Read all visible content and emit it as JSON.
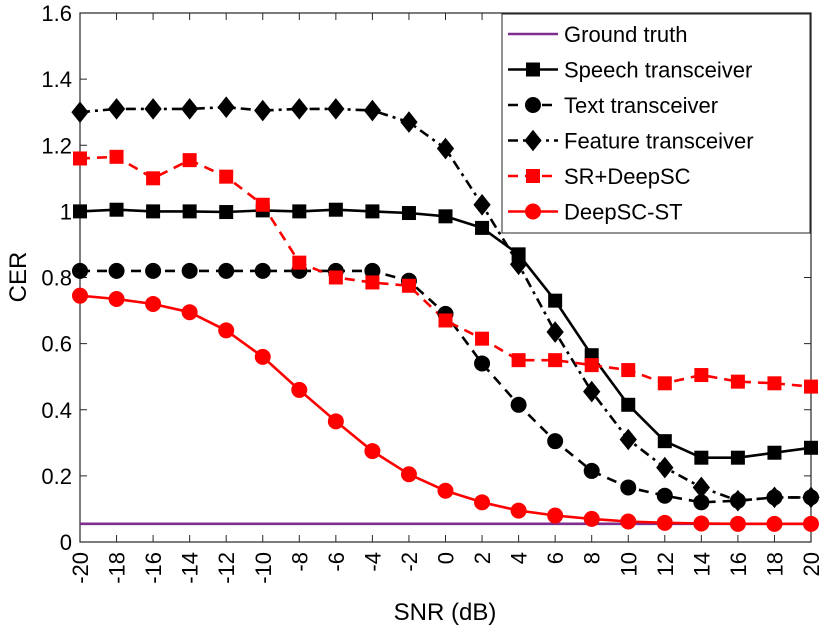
{
  "chart_data": {
    "type": "line",
    "xlabel": "SNR (dB)",
    "ylabel": "CER",
    "x": [
      -20,
      -18,
      -16,
      -14,
      -12,
      -10,
      -8,
      -6,
      -4,
      -2,
      0,
      2,
      4,
      6,
      8,
      10,
      12,
      14,
      16,
      18,
      20
    ],
    "xlim": [
      -20,
      20
    ],
    "ylim": [
      0,
      1.6
    ],
    "xticks": [
      "-20",
      "-18",
      "-16",
      "-14",
      "-12",
      "-10",
      "-8",
      "-6",
      "-4",
      "-2",
      "0",
      "2",
      "4",
      "6",
      "8",
      "10",
      "12",
      "14",
      "16",
      "18",
      "20"
    ],
    "yticks": [
      "0",
      "0.2",
      "0.4",
      "0.6",
      "0.8",
      "1",
      "1.2",
      "1.4",
      "1.6"
    ],
    "grid": false,
    "legend_position": "top-right",
    "series": [
      {
        "name": "Ground truth",
        "color": "#7e2f8e",
        "style": "solid",
        "marker": "none",
        "values": [
          0.055,
          0.055,
          0.055,
          0.055,
          0.055,
          0.055,
          0.055,
          0.055,
          0.055,
          0.055,
          0.055,
          0.055,
          0.055,
          0.055,
          0.055,
          0.055,
          0.055,
          0.055,
          0.055,
          0.055,
          0.055
        ]
      },
      {
        "name": "Speech transceiver",
        "color": "#000000",
        "style": "solid",
        "marker": "square",
        "values": [
          1.0,
          1.005,
          1.0,
          1.0,
          0.998,
          1.003,
          1.0,
          1.005,
          1.0,
          0.995,
          0.985,
          0.95,
          0.87,
          0.73,
          0.565,
          0.415,
          0.305,
          0.255,
          0.255,
          0.27,
          0.285
        ]
      },
      {
        "name": "Text transceiver",
        "color": "#000000",
        "style": "dashed",
        "marker": "circle",
        "values": [
          0.82,
          0.82,
          0.82,
          0.82,
          0.82,
          0.82,
          0.82,
          0.82,
          0.82,
          0.79,
          0.69,
          0.54,
          0.415,
          0.305,
          0.215,
          0.165,
          0.14,
          0.12,
          0.125,
          0.135,
          0.135
        ]
      },
      {
        "name": "Feature transceiver",
        "color": "#000000",
        "style": "dashdot",
        "marker": "diamond",
        "values": [
          1.3,
          1.31,
          1.31,
          1.31,
          1.315,
          1.305,
          1.31,
          1.31,
          1.305,
          1.27,
          1.19,
          1.02,
          0.84,
          0.635,
          0.455,
          0.31,
          0.225,
          0.165,
          0.125,
          0.135,
          0.135
        ]
      },
      {
        "name": "SR+DeepSC",
        "color": "#ff0000",
        "style": "dashed",
        "marker": "square",
        "values": [
          1.16,
          1.165,
          1.1,
          1.155,
          1.105,
          1.02,
          0.845,
          0.8,
          0.785,
          0.775,
          0.67,
          0.615,
          0.55,
          0.55,
          0.535,
          0.52,
          0.48,
          0.505,
          0.485,
          0.48,
          0.47
        ]
      },
      {
        "name": "DeepSC-ST",
        "color": "#ff0000",
        "style": "solid",
        "marker": "circle",
        "values": [
          0.745,
          0.735,
          0.72,
          0.695,
          0.64,
          0.56,
          0.46,
          0.365,
          0.275,
          0.205,
          0.155,
          0.12,
          0.095,
          0.08,
          0.07,
          0.062,
          0.058,
          0.056,
          0.055,
          0.055,
          0.055
        ]
      }
    ]
  }
}
